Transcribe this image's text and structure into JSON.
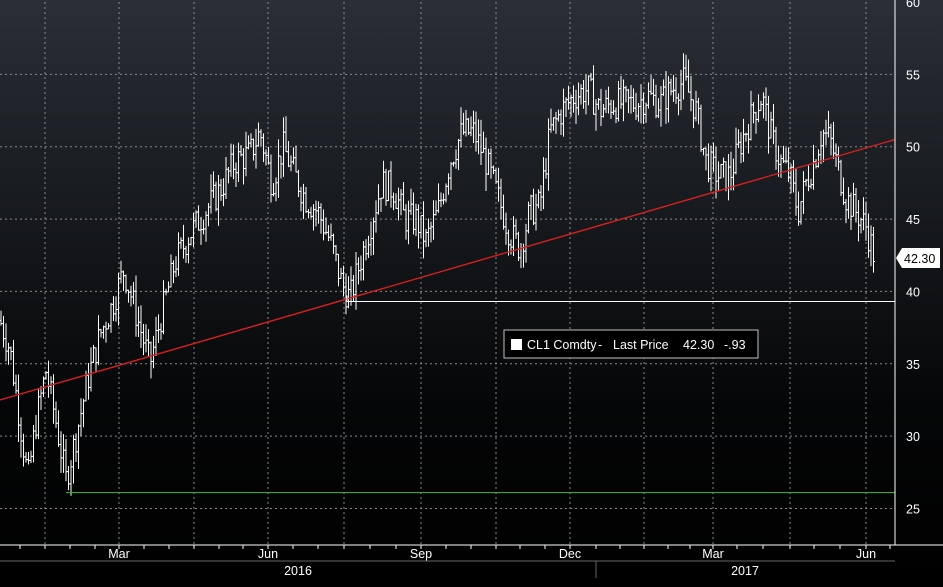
{
  "chart_data": {
    "type": "ohlc",
    "title": "",
    "ylim": [
      24,
      60
    ],
    "y_ticks": [
      25,
      30,
      35,
      40,
      45,
      50,
      55,
      60
    ],
    "x_month_labels": [
      "Mar",
      "Jun",
      "Sep",
      "Dec",
      "Mar",
      "Jun"
    ],
    "x_year_labels": [
      "2016",
      "2017"
    ],
    "legend": {
      "symbol": "CL1 Comdty",
      "field": "Last Price",
      "last_price": "42.30",
      "change": "-.93"
    },
    "last_price_tag": "42.30",
    "price_path": [
      [
        0,
        38.0
      ],
      [
        10,
        36.0
      ],
      [
        18,
        32.0
      ],
      [
        28,
        27.0
      ],
      [
        36,
        31.0
      ],
      [
        46,
        34.5
      ],
      [
        56,
        31.0
      ],
      [
        66,
        27.0
      ],
      [
        76,
        30.0
      ],
      [
        88,
        34.0
      ],
      [
        100,
        37.0
      ],
      [
        112,
        39.0
      ],
      [
        124,
        41.5
      ],
      [
        138,
        38.0
      ],
      [
        150,
        35.0
      ],
      [
        162,
        38.5
      ],
      [
        175,
        42.0
      ],
      [
        190,
        44.0
      ],
      [
        205,
        45.5
      ],
      [
        220,
        47.0
      ],
      [
        235,
        49.0
      ],
      [
        250,
        49.5
      ],
      [
        260,
        51.0
      ],
      [
        272,
        47.5
      ],
      [
        283,
        50.0
      ],
      [
        295,
        48.0
      ],
      [
        305,
        46.5
      ],
      [
        318,
        45.5
      ],
      [
        330,
        43.5
      ],
      [
        342,
        40.5
      ],
      [
        350,
        39.5
      ],
      [
        358,
        41.5
      ],
      [
        370,
        44.5
      ],
      [
        382,
        47.5
      ],
      [
        394,
        47.0
      ],
      [
        405,
        45.0
      ],
      [
        416,
        45.0
      ],
      [
        426,
        43.5
      ],
      [
        438,
        45.5
      ],
      [
        450,
        49.0
      ],
      [
        462,
        51.0
      ],
      [
        474,
        51.0
      ],
      [
        486,
        49.0
      ],
      [
        498,
        46.5
      ],
      [
        510,
        44.0
      ],
      [
        520,
        43.0
      ],
      [
        530,
        45.5
      ],
      [
        540,
        46.0
      ],
      [
        550,
        51.0
      ],
      [
        562,
        52.5
      ],
      [
        574,
        53.5
      ],
      [
        588,
        54.0
      ],
      [
        600,
        52.5
      ],
      [
        612,
        53.0
      ],
      [
        624,
        53.0
      ],
      [
        636,
        53.0
      ],
      [
        648,
        53.5
      ],
      [
        660,
        53.0
      ],
      [
        672,
        54.0
      ],
      [
        684,
        54.5
      ],
      [
        696,
        52.5
      ],
      [
        706,
        49.0
      ],
      [
        718,
        48.0
      ],
      [
        730,
        48.0
      ],
      [
        742,
        50.5
      ],
      [
        754,
        52.5
      ],
      [
        762,
        53.5
      ],
      [
        770,
        51.0
      ],
      [
        780,
        49.0
      ],
      [
        790,
        48.0
      ],
      [
        798,
        45.5
      ],
      [
        806,
        47.5
      ],
      [
        814,
        49.0
      ],
      [
        822,
        51.0
      ],
      [
        830,
        50.5
      ],
      [
        838,
        48.5
      ],
      [
        846,
        46.5
      ],
      [
        856,
        45.5
      ],
      [
        866,
        44.5
      ],
      [
        874,
        42.5
      ]
    ],
    "trendline": {
      "from": [
        0,
        32.5
      ],
      "to": [
        895,
        50.5
      ],
      "color": "#d42020"
    },
    "support_line_white": {
      "from_x": 347,
      "to_x": 895,
      "value": 39.3,
      "color": "#ffffff"
    },
    "support_line_green": {
      "from_x": 66,
      "to_x": 895,
      "value": 26.1,
      "color": "#3ca83c"
    },
    "colors": {
      "bars": "#ffffff",
      "grid": "#8a8a8a",
      "axis_text": "#ffffff"
    }
  }
}
